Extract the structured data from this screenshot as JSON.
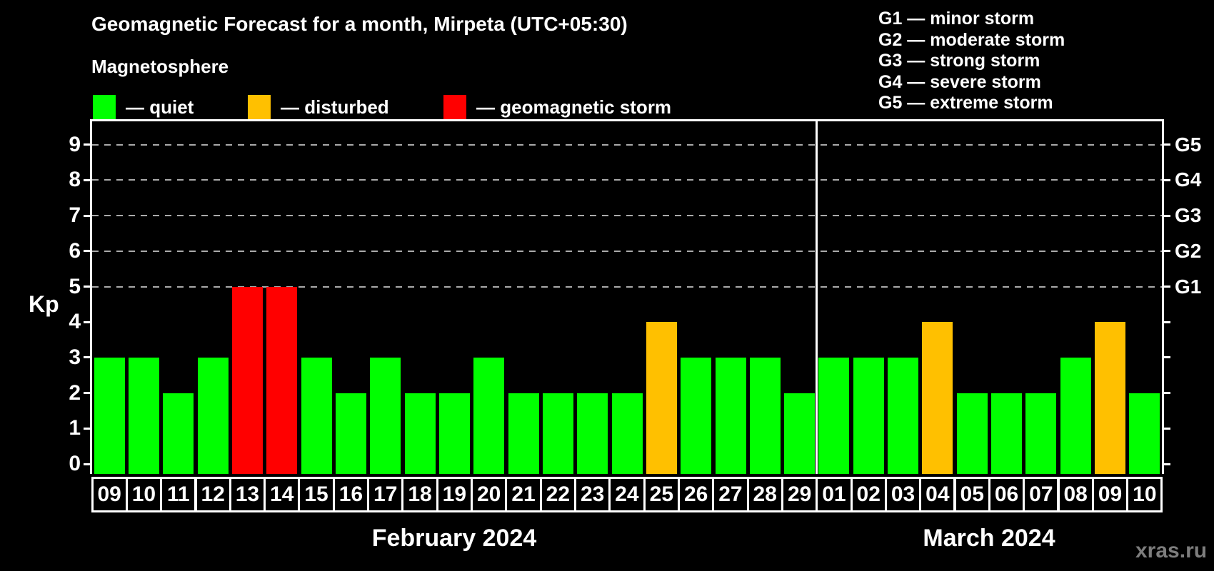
{
  "title": "Geomagnetic Forecast for a month, Mirpeta (UTC+05:30)",
  "subtitle": "Magnetosphere",
  "legend": {
    "items": [
      {
        "label": "— quiet",
        "status": "quiet",
        "color": "#00ff00"
      },
      {
        "label": "— disturbed",
        "status": "disturbed",
        "color": "#ffc000"
      },
      {
        "label": "— geomagnetic storm",
        "status": "storm",
        "color": "#ff0000"
      }
    ]
  },
  "g_legend": [
    "G1 — minor storm",
    "G2 — moderate storm",
    "G3 — strong storm",
    "G4 — severe storm",
    "G5 — extreme storm"
  ],
  "watermark": "xras.ru",
  "colors": {
    "quiet": "#00ff00",
    "disturbed": "#ffc000",
    "storm": "#ff0000",
    "grid": "#aaaaaa",
    "axis": "#ffffff",
    "watermark": "#7d7d7d"
  },
  "chart_data": {
    "type": "bar",
    "ylabel": "Kp",
    "ylim": [
      0,
      9
    ],
    "yticks": [
      0,
      1,
      2,
      3,
      4,
      5,
      6,
      7,
      8,
      9
    ],
    "gridlines_at": [
      5,
      6,
      7,
      8,
      9
    ],
    "grid": true,
    "right_axis_labels": [
      {
        "kp": 5,
        "label": "G1"
      },
      {
        "kp": 6,
        "label": "G2"
      },
      {
        "kp": 7,
        "label": "G3"
      },
      {
        "kp": 8,
        "label": "G4"
      },
      {
        "kp": 9,
        "label": "G5"
      }
    ],
    "months": [
      {
        "label": "February 2024",
        "days": [
          {
            "day": "09",
            "kp": 3,
            "status": "quiet"
          },
          {
            "day": "10",
            "kp": 3,
            "status": "quiet"
          },
          {
            "day": "11",
            "kp": 2,
            "status": "quiet"
          },
          {
            "day": "12",
            "kp": 3,
            "status": "quiet"
          },
          {
            "day": "13",
            "kp": 5,
            "status": "storm"
          },
          {
            "day": "14",
            "kp": 5,
            "status": "storm"
          },
          {
            "day": "15",
            "kp": 3,
            "status": "quiet"
          },
          {
            "day": "16",
            "kp": 2,
            "status": "quiet"
          },
          {
            "day": "17",
            "kp": 3,
            "status": "quiet"
          },
          {
            "day": "18",
            "kp": 2,
            "status": "quiet"
          },
          {
            "day": "19",
            "kp": 2,
            "status": "quiet"
          },
          {
            "day": "20",
            "kp": 3,
            "status": "quiet"
          },
          {
            "day": "21",
            "kp": 2,
            "status": "quiet"
          },
          {
            "day": "22",
            "kp": 2,
            "status": "quiet"
          },
          {
            "day": "23",
            "kp": 2,
            "status": "quiet"
          },
          {
            "day": "24",
            "kp": 2,
            "status": "quiet"
          },
          {
            "day": "25",
            "kp": 4,
            "status": "disturbed"
          },
          {
            "day": "26",
            "kp": 3,
            "status": "quiet"
          },
          {
            "day": "27",
            "kp": 3,
            "status": "quiet"
          },
          {
            "day": "28",
            "kp": 3,
            "status": "quiet"
          },
          {
            "day": "29",
            "kp": 2,
            "status": "quiet"
          }
        ]
      },
      {
        "label": "March 2024",
        "days": [
          {
            "day": "01",
            "kp": 3,
            "status": "quiet"
          },
          {
            "day": "02",
            "kp": 3,
            "status": "quiet"
          },
          {
            "day": "03",
            "kp": 3,
            "status": "quiet"
          },
          {
            "day": "04",
            "kp": 4,
            "status": "disturbed"
          },
          {
            "day": "05",
            "kp": 2,
            "status": "quiet"
          },
          {
            "day": "06",
            "kp": 2,
            "status": "quiet"
          },
          {
            "day": "07",
            "kp": 2,
            "status": "quiet"
          },
          {
            "day": "08",
            "kp": 3,
            "status": "quiet"
          },
          {
            "day": "09",
            "kp": 4,
            "status": "disturbed"
          },
          {
            "day": "10",
            "kp": 2,
            "status": "quiet"
          }
        ]
      }
    ]
  }
}
